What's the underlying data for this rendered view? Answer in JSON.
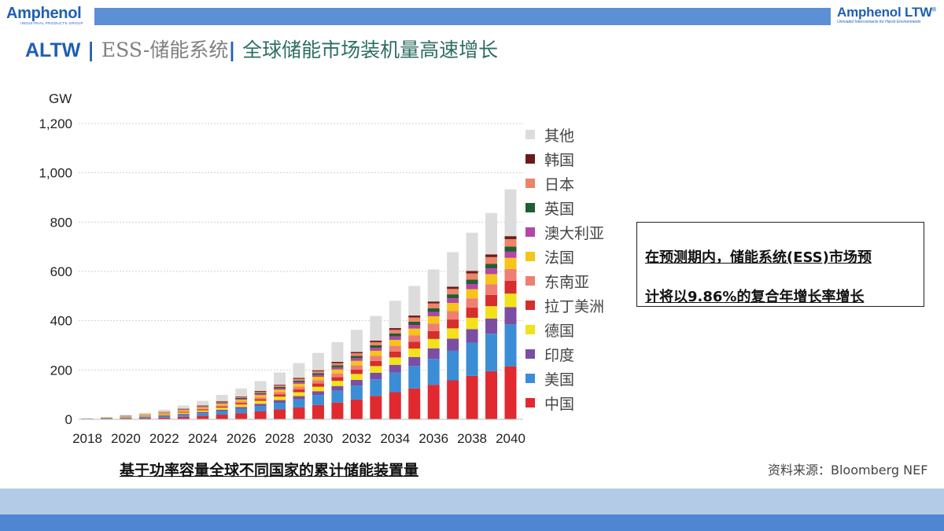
{
  "header": {
    "logo_left": "Amphenol",
    "logo_left_sub": "INDUSTRIAL PRODUCTS GROUP",
    "logo_right": "Amphenol LTW",
    "logo_right_mark": "®",
    "logo_right_sub": "Unrivaled Interconnects for Harsh Environments"
  },
  "title": {
    "part1": "ALTW",
    "sep1": " | ",
    "part2": "ESS-储能系统",
    "sep2": "| ",
    "part3": "全球储能市场装机量高速增长"
  },
  "note": {
    "line1": "在预测期内，储能系统(ESS)市场预",
    "line2": "计将以9.86%的复合年增长率增长"
  },
  "caption": "基于功率容量全球不同国家的累计储能装置量",
  "source": "资料来源：Bloomberg NEF",
  "chart_data": {
    "type": "bar",
    "stacked": true,
    "title": "",
    "ylabel": "GW",
    "ylim": [
      0,
      1200
    ],
    "yticks": [
      0,
      200,
      400,
      600,
      800,
      1000,
      1200
    ],
    "ytick_labels": [
      "0",
      "200",
      "400",
      "600",
      "800",
      "1,000",
      "1,200"
    ],
    "categories": [
      "2018",
      "2019",
      "2020",
      "2021",
      "2022",
      "2023",
      "2024",
      "2025",
      "2026",
      "2027",
      "2028",
      "2029",
      "2030",
      "2031",
      "2032",
      "2033",
      "2034",
      "2035",
      "2036",
      "2037",
      "2038",
      "2039",
      "2040"
    ],
    "xtick_labels": [
      "2018",
      "2020",
      "2022",
      "2024",
      "2026",
      "2028",
      "2030",
      "2032",
      "2034",
      "2036",
      "2038",
      "2040"
    ],
    "legend_position": "right",
    "series": [
      {
        "name": "中国",
        "color": "#e02a2f",
        "values": [
          2,
          3,
          4,
          5,
          7,
          10,
          14,
          19,
          25,
          32,
          40,
          48,
          58,
          68,
          80,
          95,
          110,
          125,
          140,
          158,
          176,
          195,
          215
        ]
      },
      {
        "name": "美国",
        "color": "#3b8ed6",
        "values": [
          1,
          2,
          3,
          4,
          6,
          8,
          11,
          14,
          18,
          22,
          27,
          33,
          40,
          48,
          57,
          67,
          79,
          91,
          105,
          120,
          135,
          152,
          170
        ]
      },
      {
        "name": "印度",
        "color": "#7b4ea3",
        "values": [
          0,
          1,
          1,
          2,
          3,
          4,
          5,
          6,
          7,
          9,
          11,
          13,
          16,
          19,
          23,
          27,
          32,
          37,
          43,
          49,
          55,
          62,
          70
        ]
      },
      {
        "name": "德国",
        "color": "#f2e21c",
        "values": [
          1,
          1,
          2,
          3,
          4,
          5,
          6,
          8,
          10,
          12,
          14,
          16,
          18,
          21,
          24,
          27,
          30,
          34,
          38,
          42,
          46,
          50,
          55
        ]
      },
      {
        "name": "拉丁美洲",
        "color": "#d62d2d",
        "values": [
          0,
          0,
          1,
          1,
          2,
          3,
          4,
          5,
          6,
          7,
          9,
          11,
          13,
          15,
          18,
          21,
          24,
          28,
          32,
          36,
          41,
          46,
          52
        ]
      },
      {
        "name": "东南亚",
        "color": "#ef7f72",
        "values": [
          0,
          0,
          1,
          1,
          2,
          3,
          4,
          5,
          6,
          7,
          9,
          11,
          13,
          15,
          17,
          20,
          23,
          26,
          30,
          34,
          38,
          43,
          48
        ]
      },
      {
        "name": "法国",
        "color": "#f5c518",
        "values": [
          0,
          1,
          1,
          2,
          3,
          4,
          5,
          6,
          7,
          9,
          10,
          12,
          14,
          16,
          18,
          21,
          24,
          27,
          30,
          33,
          37,
          41,
          45
        ]
      },
      {
        "name": "澳大利亚",
        "color": "#b545a6",
        "values": [
          0,
          0,
          1,
          1,
          1,
          2,
          3,
          3,
          4,
          5,
          6,
          7,
          8,
          9,
          11,
          12,
          14,
          15,
          17,
          19,
          21,
          23,
          25
        ]
      },
      {
        "name": "英国",
        "color": "#1f5e32",
        "values": [
          0,
          0,
          1,
          1,
          1,
          2,
          2,
          3,
          4,
          4,
          5,
          6,
          7,
          8,
          9,
          10,
          12,
          13,
          15,
          16,
          18,
          19,
          21
        ]
      },
      {
        "name": "日本",
        "color": "#ee8468",
        "values": [
          0,
          0,
          0,
          1,
          1,
          2,
          2,
          3,
          4,
          5,
          6,
          7,
          8,
          9,
          11,
          13,
          15,
          17,
          20,
          22,
          25,
          27,
          30
        ]
      },
      {
        "name": "韩国",
        "color": "#6b1a1a",
        "values": [
          0,
          0,
          0,
          0,
          1,
          1,
          1,
          2,
          2,
          3,
          3,
          4,
          4,
          5,
          5,
          6,
          7,
          8,
          8,
          9,
          10,
          11,
          12
        ]
      },
      {
        "name": "其他",
        "color": "#dcdcdc",
        "values": [
          1,
          2,
          3,
          5,
          8,
          12,
          18,
          25,
          32,
          40,
          50,
          60,
          70,
          80,
          90,
          100,
          111,
          120,
          130,
          140,
          155,
          168,
          190
        ]
      }
    ]
  }
}
